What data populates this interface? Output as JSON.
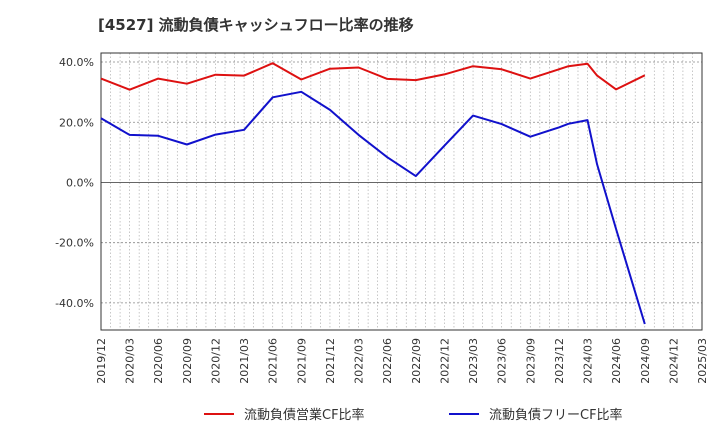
{
  "chart_data": {
    "type": "line",
    "title": "[4527]  流動負債キャッシュフロー比率の推移",
    "xlabel": "",
    "ylabel": "",
    "x_ticks": [
      "2019/12",
      "2020/03",
      "2020/06",
      "2020/09",
      "2020/12",
      "2021/03",
      "2021/06",
      "2021/09",
      "2021/12",
      "2022/03",
      "2022/06",
      "2022/09",
      "2022/12",
      "2023/03",
      "2023/06",
      "2023/09",
      "2023/12",
      "2024/03",
      "2024/06",
      "2024/09",
      "2024/12",
      "2025/03"
    ],
    "y_ticks": [
      {
        "value": 40,
        "label": "40.0%"
      },
      {
        "value": 20,
        "label": "20.0%"
      },
      {
        "value": 0,
        "label": "0.0%"
      },
      {
        "value": -20,
        "label": "-20.0%"
      },
      {
        "value": -40,
        "label": "-40.0%"
      }
    ],
    "ylim": [
      -49,
      43
    ],
    "grid": true,
    "legend_position": "bottom",
    "series": [
      {
        "name": "流動負債営業CF比率",
        "color": "#dd1111",
        "points": [
          [
            "2019/12",
            34.5
          ],
          [
            "2020/03",
            30.8
          ],
          [
            "2020/06",
            34.5
          ],
          [
            "2020/09",
            32.8
          ],
          [
            "2020/12",
            35.8
          ],
          [
            "2021/03",
            35.5
          ],
          [
            "2021/06",
            39.6
          ],
          [
            "2021/09",
            34.2
          ],
          [
            "2021/12",
            37.8
          ],
          [
            "2022/03",
            38.2
          ],
          [
            "2022/06",
            34.4
          ],
          [
            "2022/09",
            34.0
          ],
          [
            "2022/12",
            35.9
          ],
          [
            "2023/03",
            38.6
          ],
          [
            "2023/06",
            37.6
          ],
          [
            "2023/09",
            34.5
          ],
          [
            "2023/12",
            37.6
          ],
          [
            "2024/01",
            38.6
          ],
          [
            "2024/03",
            39.4
          ],
          [
            "2024/04",
            35.5
          ],
          [
            "2024/06",
            30.9
          ],
          [
            "2024/09",
            35.6
          ]
        ]
      },
      {
        "name": "流動負債フリーCF比率",
        "color": "#1111cc",
        "points": [
          [
            "2019/12",
            21.3
          ],
          [
            "2020/03",
            15.8
          ],
          [
            "2020/06",
            15.5
          ],
          [
            "2020/09",
            12.6
          ],
          [
            "2020/12",
            15.9
          ],
          [
            "2021/03",
            17.5
          ],
          [
            "2021/06",
            28.3
          ],
          [
            "2021/09",
            30.1
          ],
          [
            "2021/12",
            24.1
          ],
          [
            "2022/03",
            15.8
          ],
          [
            "2022/06",
            8.4
          ],
          [
            "2022/09",
            2.1
          ],
          [
            "2022/12",
            12.2
          ],
          [
            "2023/03",
            22.2
          ],
          [
            "2023/06",
            19.4
          ],
          [
            "2023/09",
            15.2
          ],
          [
            "2023/12",
            18.3
          ],
          [
            "2024/01",
            19.5
          ],
          [
            "2024/03",
            20.7
          ],
          [
            "2024/04",
            6.0
          ],
          [
            "2024/06",
            -15.5
          ],
          [
            "2024/09",
            -47.0
          ]
        ]
      }
    ]
  }
}
